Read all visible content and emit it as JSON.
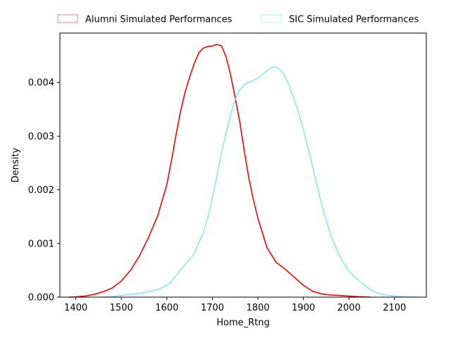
{
  "chart_data": {
    "type": "line",
    "xlabel": "Home_Rtng",
    "ylabel": "Density",
    "xlim": [
      1365,
      2170
    ],
    "ylim": [
      0,
      0.00492
    ],
    "xticks": [
      1400,
      1500,
      1600,
      1700,
      1800,
      1900,
      2000,
      2100
    ],
    "xtick_labels": [
      "1400",
      "1500",
      "1600",
      "1700",
      "1800",
      "1900",
      "2000",
      "2100"
    ],
    "yticks": [
      0,
      0.001,
      0.002,
      0.003,
      0.004
    ],
    "ytick_labels": [
      "0.000",
      "0.001",
      "0.002",
      "0.003",
      "0.004"
    ],
    "grid": false,
    "legend_position": "top, above plot",
    "series": [
      {
        "name": "Alumni Simulated Performances",
        "color": "#ff0000",
        "legend_edge_color": "#f08080",
        "x": [
          1385,
          1400,
          1420,
          1440,
          1460,
          1480,
          1500,
          1520,
          1540,
          1560,
          1580,
          1600,
          1610,
          1620,
          1630,
          1640,
          1650,
          1660,
          1670,
          1680,
          1690,
          1700,
          1710,
          1720,
          1730,
          1740,
          1750,
          1760,
          1770,
          1780,
          1790,
          1800,
          1820,
          1840,
          1860,
          1880,
          1900,
          1920,
          1940,
          1960,
          1980,
          2000,
          2020,
          2048
        ],
        "y": [
          0.0,
          5e-06,
          2e-05,
          5e-05,
          0.0001,
          0.00017,
          0.0003,
          0.0005,
          0.00077,
          0.00112,
          0.00152,
          0.0021,
          0.00254,
          0.00302,
          0.00346,
          0.00382,
          0.0041,
          0.00435,
          0.00455,
          0.00464,
          0.00467,
          0.00468,
          0.00471,
          0.00468,
          0.00448,
          0.00414,
          0.00372,
          0.00327,
          0.00273,
          0.00222,
          0.00182,
          0.00147,
          0.00092,
          0.00065,
          0.00052,
          0.00037,
          0.00022,
          0.00011,
          6e-05,
          4e-05,
          3e-05,
          2e-05,
          1e-05,
          0.0
        ]
      },
      {
        "name": "SIC Simulated Performances",
        "color": "#87e8ee",
        "legend_edge_color": "#aef0f4",
        "x": [
          1455,
          1480,
          1500,
          1520,
          1540,
          1560,
          1580,
          1600,
          1610,
          1620,
          1640,
          1660,
          1680,
          1690,
          1700,
          1710,
          1720,
          1730,
          1740,
          1750,
          1760,
          1770,
          1780,
          1790,
          1800,
          1810,
          1820,
          1830,
          1840,
          1850,
          1860,
          1870,
          1880,
          1890,
          1900,
          1910,
          1920,
          1940,
          1960,
          1980,
          2000,
          2020,
          2040,
          2060,
          2080,
          2100,
          2120,
          2150
        ],
        "y": [
          0.0,
          1e-05,
          3e-05,
          5e-05,
          7e-05,
          0.0001,
          0.00014,
          0.00022,
          0.00029,
          0.0004,
          0.00061,
          0.00081,
          0.00121,
          0.00148,
          0.00185,
          0.00226,
          0.0027,
          0.00306,
          0.0034,
          0.00368,
          0.00386,
          0.00396,
          0.004,
          0.00404,
          0.00408,
          0.00415,
          0.00422,
          0.00428,
          0.00429,
          0.00423,
          0.0041,
          0.00392,
          0.00368,
          0.00342,
          0.00312,
          0.00278,
          0.00244,
          0.00172,
          0.00115,
          0.00075,
          0.00048,
          0.00032,
          0.00018,
          8e-05,
          4e-05,
          2e-05,
          1e-05,
          0.0
        ]
      }
    ]
  }
}
